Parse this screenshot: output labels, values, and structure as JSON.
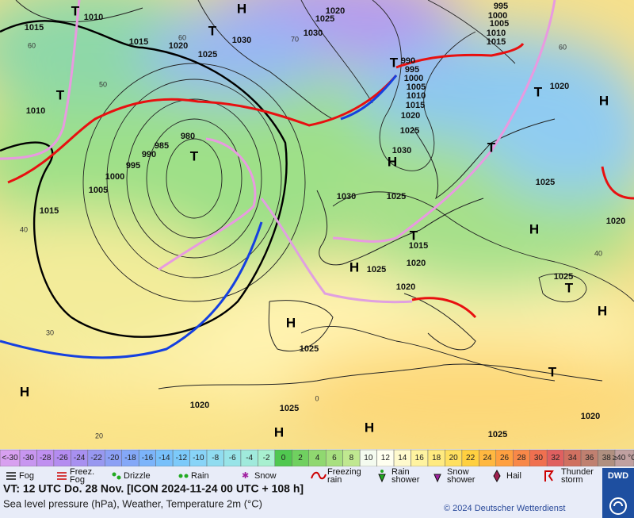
{
  "map": {
    "pressure_labels": [
      1010,
      1015,
      1015,
      1020,
      1025,
      1030,
      1025,
      1020,
      1030,
      1010,
      980,
      985,
      990,
      995,
      1000,
      1005,
      1015,
      990,
      995,
      1000,
      1005,
      1010,
      1015,
      1020,
      1025,
      1030,
      1025,
      1030,
      1015,
      1020,
      1025,
      1020,
      1025,
      1020,
      1025,
      1025,
      1020,
      1020,
      1025,
      1020,
      1025,
      995,
      1000,
      1005,
      1010,
      1015
    ],
    "high_markers": [
      "H",
      "H",
      "H",
      "H",
      "H",
      "H",
      "H",
      "H",
      "H",
      "H"
    ],
    "low_markers": [
      "T",
      "T",
      "T",
      "T",
      "T",
      "T",
      "T",
      "T",
      "T",
      "T"
    ],
    "latitude_labels": [
      60,
      50,
      40,
      30,
      20,
      70,
      60,
      60,
      40,
      0
    ]
  },
  "scale": {
    "low_label": "<-30",
    "values": [
      -30,
      -28,
      -26,
      -24,
      -22,
      -20,
      -18,
      -16,
      -14,
      -12,
      -10,
      -8,
      -6,
      -4,
      -2,
      0,
      2,
      4,
      6,
      8,
      10,
      12,
      14,
      16,
      18,
      20,
      22,
      24,
      26,
      28,
      30,
      32,
      34,
      36,
      38
    ],
    "colors": [
      "#c896f0",
      "#c090f0",
      "#b48cf0",
      "#a890f0",
      "#9898f0",
      "#8ca0f5",
      "#84a8f8",
      "#7cb4fa",
      "#78c0fa",
      "#7ccafa",
      "#88d4f8",
      "#90dcf0",
      "#98e4e8",
      "#a0eadc",
      "#a8f0d0",
      "#50c850",
      "#70d060",
      "#90d870",
      "#a8e080",
      "#c0e890",
      "#f4fbef",
      "#fffff0",
      "#fffacd",
      "#fff3a0",
      "#ffea80",
      "#ffe060",
      "#ffd040",
      "#ffb840",
      "#ffa040",
      "#f88848",
      "#f07050",
      "#e06060",
      "#d07060",
      "#c08070",
      "#b09080"
    ],
    "low_color": "#d8a0f0",
    "high_label": "≥40 °C",
    "high_color": "#c0a0a0"
  },
  "legend": [
    "Fog",
    "Freez. Fog",
    "Drizzle",
    "Rain",
    "Snow",
    "Freezing rain",
    "Rain shower",
    "Snow shower",
    "Hail",
    "Thunder storm"
  ],
  "footer": {
    "valid_time": "VT: 12 UTC Do.  28 Nov. [ICON 2024-11-24  00 UTC + 108 h]",
    "description": "Sea level pressure (hPa), Weather, Temperature 2m (°C)",
    "copyright": "© 2024 Deutscher Wetterdienst",
    "logo": "DWD"
  }
}
